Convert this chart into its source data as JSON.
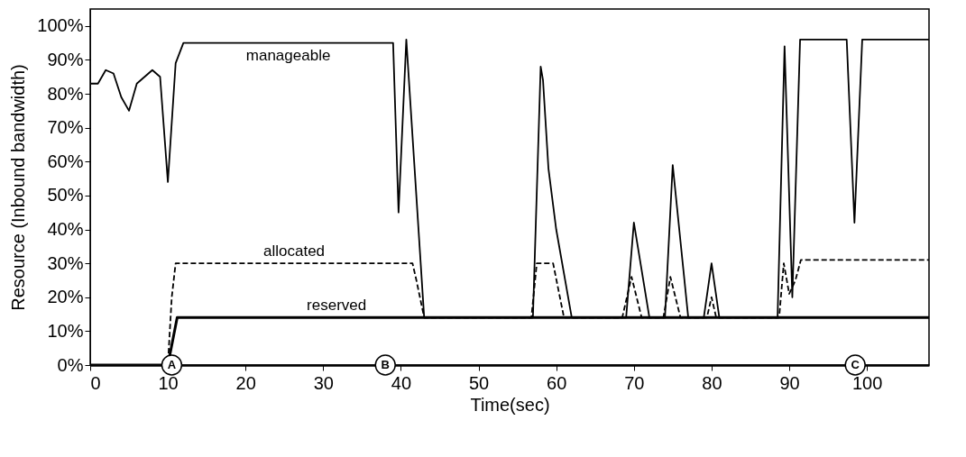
{
  "chart_data": {
    "type": "line",
    "xlabel": "Time(sec)",
    "ylabel": "Resource (Inbound bandwidth)",
    "xlim": [
      0,
      108
    ],
    "xticks": [
      0,
      10,
      20,
      30,
      40,
      50,
      60,
      70,
      80,
      90,
      100
    ],
    "ylim": [
      0,
      105
    ],
    "yticks": [
      {
        "value": 0,
        "label": "0%"
      },
      {
        "value": 10,
        "label": "10%"
      },
      {
        "value": 20,
        "label": "20%"
      },
      {
        "value": 30,
        "label": "30%"
      },
      {
        "value": 40,
        "label": "40%"
      },
      {
        "value": 50,
        "label": "50%"
      },
      {
        "value": 60,
        "label": "60%"
      },
      {
        "value": 70,
        "label": "70%"
      },
      {
        "value": 80,
        "label": "80%"
      },
      {
        "value": 90,
        "label": "90%"
      },
      {
        "value": 100,
        "label": "100%"
      }
    ],
    "grid": false,
    "marker": "none",
    "series": [
      {
        "name": "manageable",
        "color": "#000000",
        "line_style": "solid",
        "x": [
          0,
          1,
          2,
          3,
          4,
          5,
          6,
          8,
          9,
          10,
          11,
          12,
          39,
          39.7,
          40.7,
          43,
          57,
          58,
          58.3,
          59,
          60,
          62,
          69,
          70,
          72,
          74,
          75,
          77,
          79,
          80,
          81,
          88.5,
          89.4,
          90.4,
          91.4,
          97.4,
          98.4,
          99.4,
          108
        ],
        "values": [
          83,
          83,
          87,
          86,
          79,
          75,
          83,
          87,
          85,
          54,
          89,
          95,
          95,
          45,
          96,
          14,
          14,
          88,
          84,
          58,
          40,
          14,
          14,
          42,
          14,
          14,
          59,
          14,
          14,
          30,
          14,
          14,
          94,
          20,
          96,
          96,
          42,
          96,
          96
        ]
      },
      {
        "name": "allocated",
        "color": "#000000",
        "line_style": "dashed",
        "x": [
          0,
          10,
          10.5,
          11,
          41.5,
          42,
          43,
          56.8,
          57.5,
          59.6,
          61,
          68.5,
          69.7,
          71,
          73.8,
          74.7,
          76,
          79.4,
          80,
          80.6,
          88.7,
          89.3,
          90,
          90.8,
          91.5,
          108
        ],
        "values": [
          0,
          0,
          20,
          30,
          30,
          25,
          14,
          14,
          30,
          30,
          14,
          14,
          26,
          14,
          14,
          26,
          14,
          14,
          20,
          14,
          14,
          30,
          21,
          25,
          31,
          31
        ]
      },
      {
        "name": "reserved",
        "color": "#000000",
        "line_style": "solid",
        "x": [
          0,
          10,
          11.2,
          108
        ],
        "values": [
          0,
          0,
          14,
          14
        ]
      }
    ],
    "annotations": [
      {
        "text": "A",
        "x": 10.5,
        "y": 0
      },
      {
        "text": "B",
        "x": 38,
        "y": 0
      },
      {
        "text": "C",
        "x": 98.5,
        "y": 0
      }
    ]
  }
}
